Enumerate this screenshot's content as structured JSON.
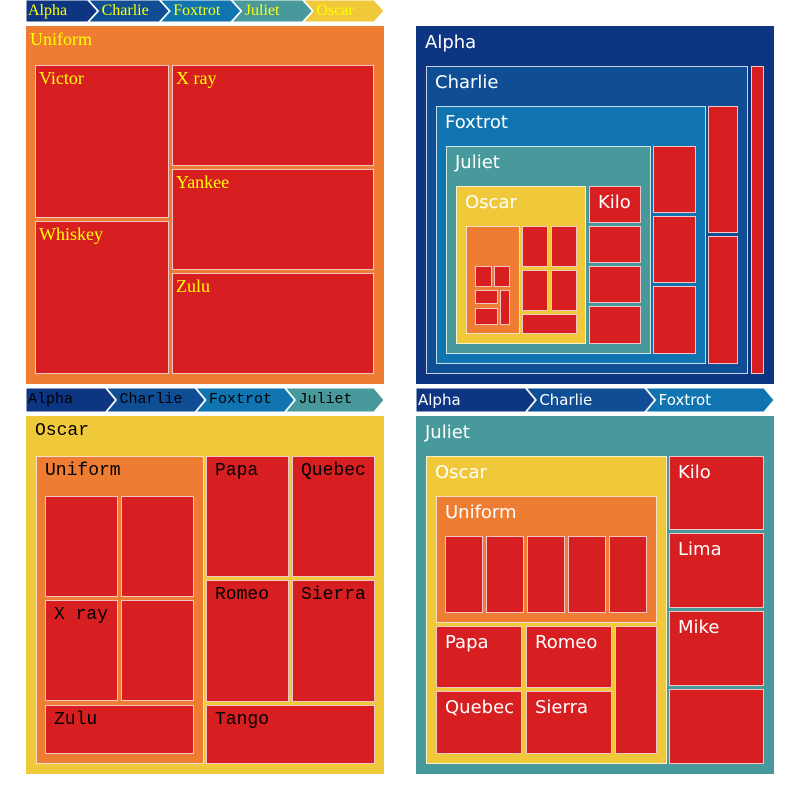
{
  "chart_data": [
    {
      "type": "treemap",
      "breadcrumb": [
        "Alpha",
        "Charlie",
        "Foxtrot",
        "Juliet",
        "Oscar"
      ],
      "root": {
        "label": "Uniform",
        "color": "#ee7d33",
        "children": [
          {
            "label": "Victor",
            "value": 6
          },
          {
            "label": "X ray",
            "value": 4
          },
          {
            "label": "Whiskey",
            "value": 6
          },
          {
            "label": "Yankee",
            "value": 4
          },
          {
            "label": "Zulu",
            "value": 4
          }
        ]
      }
    },
    {
      "type": "treemap",
      "breadcrumb": [],
      "root": {
        "label": "Alpha",
        "color": "#0d3582",
        "children": [
          {
            "label": "Charlie",
            "color": "#0f4d95",
            "children": [
              {
                "label": "Foxtrot",
                "color": "#1074b0",
                "children": [
                  {
                    "label": "Juliet",
                    "color": "#47999b",
                    "children": [
                      {
                        "label": "Oscar",
                        "color": "#f0c93a",
                        "children": [
                          {
                            "label": "",
                            "color": "#ee7d33",
                            "children": [
                              {
                                "label": "",
                                "value": 1
                              },
                              {
                                "label": "",
                                "value": 1
                              },
                              {
                                "label": "",
                                "value": 1
                              },
                              {
                                "label": "",
                                "value": 1
                              },
                              {
                                "label": "",
                                "value": 1
                              }
                            ]
                          },
                          {
                            "label": "",
                            "value": 1
                          },
                          {
                            "label": "",
                            "value": 1
                          },
                          {
                            "label": "",
                            "value": 1
                          },
                          {
                            "label": "",
                            "value": 1
                          },
                          {
                            "label": "",
                            "value": 1
                          }
                        ]
                      },
                      {
                        "label": "Kilo",
                        "value": 1
                      },
                      {
                        "label": "",
                        "value": 1
                      },
                      {
                        "label": "",
                        "value": 1
                      },
                      {
                        "label": "",
                        "value": 1
                      }
                    ]
                  },
                  {
                    "label": "",
                    "value": 1
                  },
                  {
                    "label": "",
                    "value": 1
                  },
                  {
                    "label": "",
                    "value": 1
                  }
                ]
              },
              {
                "label": "",
                "value": 1
              },
              {
                "label": "",
                "value": 1
              }
            ]
          },
          {
            "label": "",
            "value": 1
          }
        ]
      }
    },
    {
      "type": "treemap",
      "breadcrumb": [
        "Alpha",
        "Charlie",
        "Foxtrot",
        "Juliet"
      ],
      "root": {
        "label": "Oscar",
        "color": "#f0c93a",
        "children": [
          {
            "label": "Uniform",
            "color": "#ee7d33",
            "children": [
              {
                "label": "",
                "value": 1
              },
              {
                "label": "",
                "value": 1
              },
              {
                "label": "X ray",
                "value": 1
              },
              {
                "label": "",
                "value": 1
              },
              {
                "label": "Zulu",
                "value": 1
              }
            ]
          },
          {
            "label": "Papa",
            "value": 1
          },
          {
            "label": "Quebec",
            "value": 1
          },
          {
            "label": "Romeo",
            "value": 1
          },
          {
            "label": "Sierra",
            "value": 1
          },
          {
            "label": "Tango",
            "value": 1
          }
        ]
      }
    },
    {
      "type": "treemap",
      "breadcrumb": [
        "Alpha",
        "Charlie",
        "Foxtrot"
      ],
      "root": {
        "label": "Juliet",
        "color": "#47999b",
        "children": [
          {
            "label": "Oscar",
            "color": "#f0c93a",
            "children": [
              {
                "label": "Uniform",
                "color": "#ee7d33",
                "children": [
                  {
                    "label": "",
                    "value": 1
                  },
                  {
                    "label": "",
                    "value": 1
                  },
                  {
                    "label": "",
                    "value": 1
                  },
                  {
                    "label": "",
                    "value": 1
                  },
                  {
                    "label": "",
                    "value": 1
                  }
                ]
              },
              {
                "label": "Papa",
                "value": 1
              },
              {
                "label": "Romeo",
                "value": 1
              },
              {
                "label": "Quebec",
                "value": 1
              },
              {
                "label": "Sierra",
                "value": 1
              },
              {
                "label": "",
                "value": 1
              }
            ]
          },
          {
            "label": "Kilo",
            "value": 1
          },
          {
            "label": "Lima",
            "value": 1
          },
          {
            "label": "Mike",
            "value": 1
          },
          {
            "label": "",
            "value": 1
          }
        ]
      }
    }
  ],
  "colors": {
    "leaf": "#d71f22",
    "alpha": "#0d3582",
    "charlie": "#0f4d95",
    "foxtrot": "#1074b0",
    "juliet": "#47999b",
    "oscar": "#f0c93a",
    "uniform": "#ee7d33",
    "text_yellow": "#ffff00",
    "text_black": "#000000",
    "text_white": "#ffffff"
  }
}
